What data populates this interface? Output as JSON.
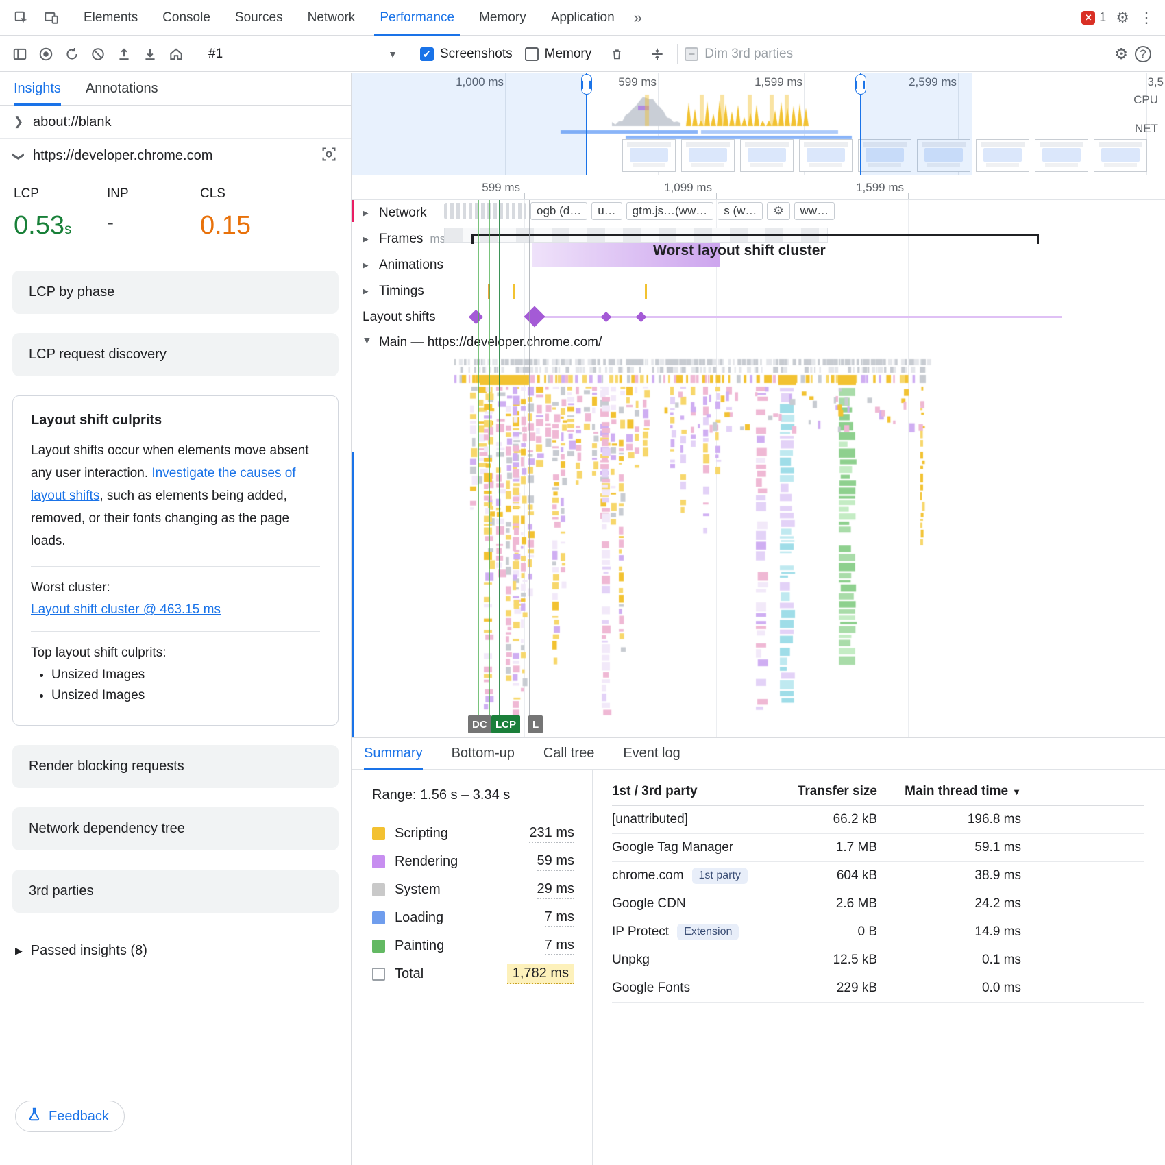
{
  "tabbar": {
    "tabs": [
      {
        "label": "Elements"
      },
      {
        "label": "Console"
      },
      {
        "label": "Sources"
      },
      {
        "label": "Network"
      },
      {
        "label": "Performance"
      },
      {
        "label": "Memory"
      },
      {
        "label": "Application"
      }
    ],
    "more_icon": "»",
    "error_count": "1"
  },
  "toolbar": {
    "history_selected": "#1",
    "screenshots_label": "Screenshots",
    "memory_label": "Memory",
    "dim_label": "Dim 3rd parties"
  },
  "sidebar": {
    "tab_insights": "Insights",
    "tab_annotations": "Annotations",
    "origin_blank": "about://blank",
    "origin_main": "https://developer.chrome.com",
    "metrics": {
      "lcp_label": "LCP",
      "lcp_value": "0.53",
      "lcp_unit": "s",
      "inp_label": "INP",
      "inp_value": "-",
      "cls_label": "CLS",
      "cls_value": "0.15"
    },
    "card_lcp_phase": "LCP by phase",
    "card_lcp_discovery": "LCP request discovery",
    "culprits": {
      "title": "Layout shift culprits",
      "body_pre": "Layout shifts occur when elements move absent any user interaction. ",
      "link": "Investigate the causes of layout shifts",
      "body_post": ", such as elements being added, removed, or their fonts changing as the page loads.",
      "worst_label": "Worst cluster:",
      "worst_link": "Layout shift cluster @ 463.15 ms",
      "top_label": "Top layout shift culprits:",
      "bullets": [
        "Unsized Images",
        "Unsized Images"
      ]
    },
    "card_render_blocking": "Render blocking requests",
    "card_network_tree": "Network dependency tree",
    "card_3rd_parties": "3rd parties",
    "passed_insights": "Passed insights (8)",
    "feedback_label": "Feedback"
  },
  "minimap": {
    "ticks": [
      "1,000 ms",
      "599 ms",
      "1,599 ms",
      "2,599 ms",
      "3,5"
    ],
    "cpu_label": "CPU",
    "net_label": "NET"
  },
  "ruler": {
    "ticks": [
      "599 ms",
      "1,099 ms",
      "1,599 ms"
    ]
  },
  "tracks": {
    "network_label": "Network",
    "frames_label": "Frames",
    "frames_unit": "ms",
    "animations_label": "Animations",
    "timings_label": "Timings",
    "layout_shifts_label": "Layout shifts",
    "cluster_label": "Worst layout shift cluster",
    "main_label": "Main — https://developer.chrome.com/",
    "network_chips": [
      "ogb (d…",
      "u…",
      "gtm.js…(ww…",
      "s (w…",
      "ww…"
    ],
    "markers": {
      "dcl": "DC",
      "lcp": "LCP",
      "l": "L"
    }
  },
  "summary": {
    "tabs": [
      "Summary",
      "Bottom-up",
      "Call tree",
      "Event log"
    ],
    "range": "Range: 1.56 s – 3.34 s",
    "legend": [
      {
        "label": "Scripting",
        "value": "231 ms",
        "color": "#f3c131"
      },
      {
        "label": "Rendering",
        "value": "59 ms",
        "color": "#c78ef0"
      },
      {
        "label": "System",
        "value": "29 ms",
        "color": "#c9c9c9"
      },
      {
        "label": "Loading",
        "value": "7 ms",
        "color": "#6f9ded"
      },
      {
        "label": "Painting",
        "value": "7 ms",
        "color": "#63b963"
      },
      {
        "label": "Total",
        "value": "1,782 ms",
        "color": "#ffffff"
      }
    ],
    "table": {
      "col_party": "1st / 3rd party",
      "col_size": "Transfer size",
      "col_time": "Main thread time",
      "rows": [
        {
          "name": "[unattributed]",
          "badge": "",
          "size": "66.2 kB",
          "time": "196.8 ms"
        },
        {
          "name": "Google Tag Manager",
          "badge": "",
          "size": "1.7 MB",
          "time": "59.1 ms"
        },
        {
          "name": "chrome.com",
          "badge": "1st party",
          "size": "604 kB",
          "time": "38.9 ms"
        },
        {
          "name": "Google CDN",
          "badge": "",
          "size": "2.6 MB",
          "time": "24.2 ms"
        },
        {
          "name": "IP Protect",
          "badge": "Extension",
          "size": "0 B",
          "time": "14.9 ms"
        },
        {
          "name": "Unpkg",
          "badge": "",
          "size": "12.5 kB",
          "time": "0.1 ms"
        },
        {
          "name": "Google Fonts",
          "badge": "",
          "size": "229 kB",
          "time": "0.0 ms"
        }
      ]
    }
  }
}
